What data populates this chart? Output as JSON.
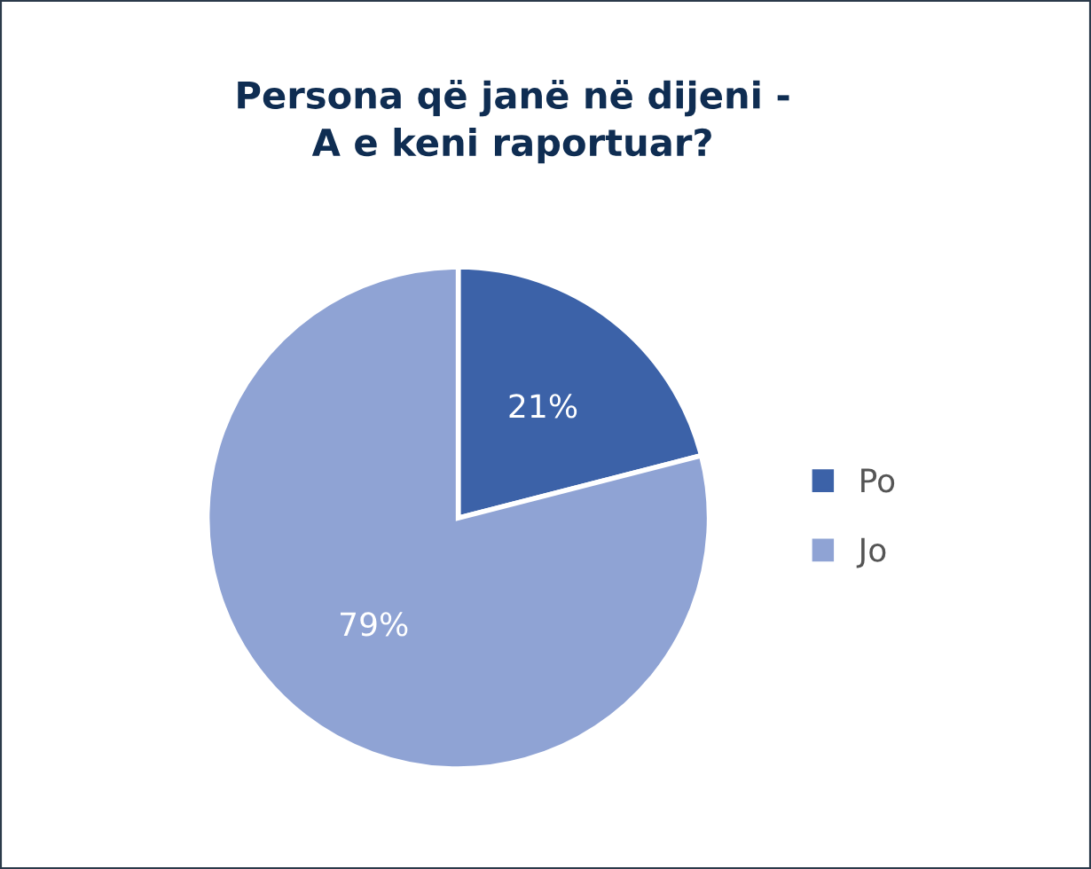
{
  "chart_data": {
    "type": "pie",
    "title": "Persona që janë në dijeni -\nA e keni raportuar?",
    "categories": [
      "Po",
      "Jo"
    ],
    "values": [
      21,
      79
    ],
    "colors": [
      "#3c62a8",
      "#8fa3d4"
    ],
    "value_labels": [
      "21%",
      "79%"
    ],
    "legend": "right"
  }
}
